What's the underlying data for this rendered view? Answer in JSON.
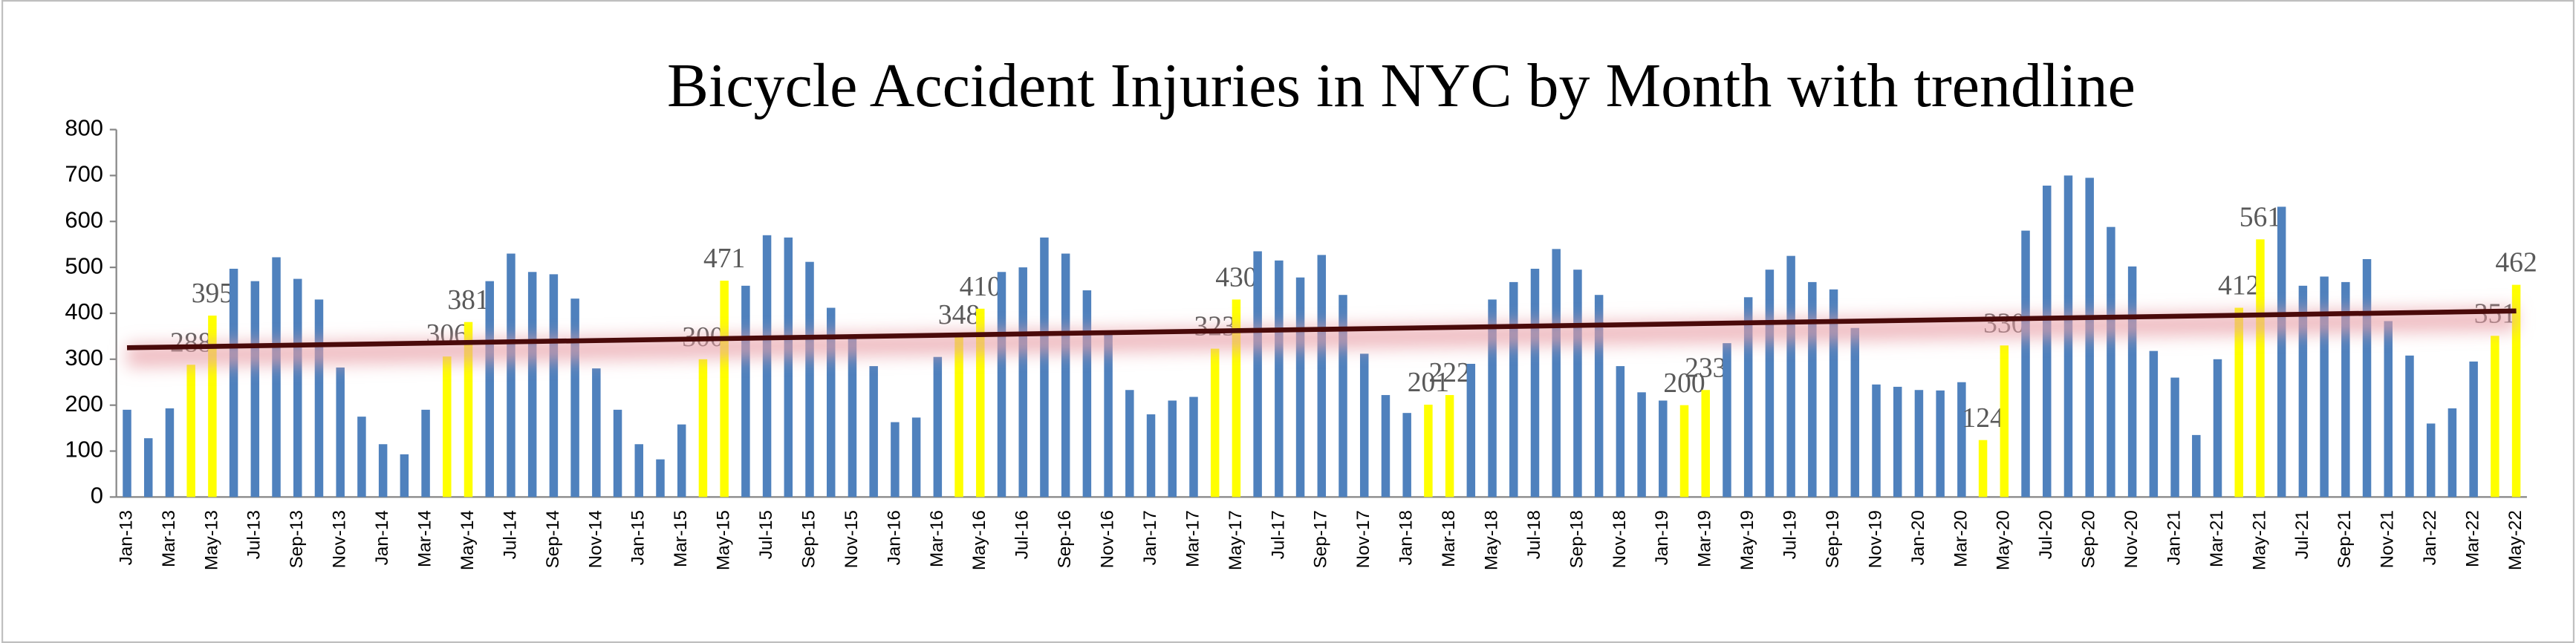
{
  "chart_data": {
    "type": "bar",
    "title": "Bicycle Accident Injuries in NYC by Month with trendline",
    "categories": [
      "Jan-13",
      null,
      "Mar-13",
      null,
      "May-13",
      null,
      "Jul-13",
      null,
      "Sep-13",
      null,
      "Nov-13",
      null,
      "Jan-14",
      null,
      "Mar-14",
      null,
      "May-14",
      null,
      "Jul-14",
      null,
      "Sep-14",
      null,
      "Nov-14",
      null,
      "Jan-15",
      null,
      "Mar-15",
      null,
      "May-15",
      null,
      "Jul-15",
      null,
      "Sep-15",
      null,
      "Nov-15",
      null,
      "Jan-16",
      null,
      "Mar-16",
      null,
      "May-16",
      null,
      "Jul-16",
      null,
      "Sep-16",
      null,
      "Nov-16",
      null,
      "Jan-17",
      null,
      "Mar-17",
      null,
      "May-17",
      null,
      "Jul-17",
      null,
      "Sep-17",
      null,
      "Nov-17",
      null,
      "Jan-18",
      null,
      "Mar-18",
      null,
      "May-18",
      null,
      "Jul-18",
      null,
      "Sep-18",
      null,
      "Nov-18",
      null,
      "Jan-19",
      null,
      "Mar-19",
      null,
      "May-19",
      null,
      "Jul-19",
      null,
      "Sep-19",
      null,
      "Nov-19",
      null,
      "Jan-20",
      null,
      "Mar-20",
      null,
      "May-20",
      null,
      "Jul-20",
      null,
      "Sep-20",
      null,
      "Nov-20",
      null,
      "Jan-21",
      null,
      "Mar-21",
      null,
      "May-21",
      null,
      "Jul-21",
      null,
      "Sep-21",
      null,
      "Nov-21",
      null,
      "Jan-22",
      null,
      "Mar-22",
      null,
      "May-22"
    ],
    "values": [
      190,
      128,
      193,
      288,
      395,
      497,
      470,
      522,
      475,
      430,
      282,
      175,
      115,
      93,
      190,
      306,
      381,
      470,
      530,
      490,
      485,
      432,
      280,
      190,
      115,
      82,
      158,
      300,
      471,
      460,
      570,
      565,
      512,
      412,
      345,
      285,
      163,
      173,
      305,
      348,
      410,
      490,
      500,
      565,
      530,
      450,
      355,
      233,
      180,
      210,
      218,
      323,
      430,
      535,
      515,
      478,
      527,
      440,
      312,
      222,
      183,
      201,
      222,
      290,
      430,
      468,
      497,
      540,
      495,
      440,
      285,
      228,
      210,
      200,
      233,
      335,
      435,
      495,
      525,
      468,
      452,
      368,
      245,
      240,
      233,
      232,
      250,
      124,
      330,
      580,
      678,
      700,
      695,
      588,
      502,
      318,
      260,
      135,
      300,
      412,
      561,
      632,
      460,
      480,
      468,
      518,
      383,
      308,
      160,
      193,
      295,
      351,
      462
    ],
    "colors": [
      "#4f81bd",
      "#4f81bd",
      "#4f81bd",
      "#ffff00",
      "#ffff00",
      "#4f81bd",
      "#4f81bd",
      "#4f81bd",
      "#4f81bd",
      "#4f81bd",
      "#4f81bd",
      "#4f81bd",
      "#4f81bd",
      "#4f81bd",
      "#4f81bd",
      "#ffff00",
      "#ffff00",
      "#4f81bd",
      "#4f81bd",
      "#4f81bd",
      "#4f81bd",
      "#4f81bd",
      "#4f81bd",
      "#4f81bd",
      "#4f81bd",
      "#4f81bd",
      "#4f81bd",
      "#ffff00",
      "#ffff00",
      "#4f81bd",
      "#4f81bd",
      "#4f81bd",
      "#4f81bd",
      "#4f81bd",
      "#4f81bd",
      "#4f81bd",
      "#4f81bd",
      "#4f81bd",
      "#4f81bd",
      "#ffff00",
      "#ffff00",
      "#4f81bd",
      "#4f81bd",
      "#4f81bd",
      "#4f81bd",
      "#4f81bd",
      "#4f81bd",
      "#4f81bd",
      "#4f81bd",
      "#4f81bd",
      "#4f81bd",
      "#ffff00",
      "#ffff00",
      "#4f81bd",
      "#4f81bd",
      "#4f81bd",
      "#4f81bd",
      "#4f81bd",
      "#4f81bd",
      "#4f81bd",
      "#4f81bd",
      "#ffff00",
      "#ffff00",
      "#4f81bd",
      "#4f81bd",
      "#4f81bd",
      "#4f81bd",
      "#4f81bd",
      "#4f81bd",
      "#4f81bd",
      "#4f81bd",
      "#4f81bd",
      "#4f81bd",
      "#ffff00",
      "#ffff00",
      "#4f81bd",
      "#4f81bd",
      "#4f81bd",
      "#4f81bd",
      "#4f81bd",
      "#4f81bd",
      "#4f81bd",
      "#4f81bd",
      "#4f81bd",
      "#4f81bd",
      "#4f81bd",
      "#4f81bd",
      "#ffff00",
      "#ffff00",
      "#4f81bd",
      "#4f81bd",
      "#4f81bd",
      "#4f81bd",
      "#4f81bd",
      "#4f81bd",
      "#4f81bd",
      "#4f81bd",
      "#4f81bd",
      "#4f81bd",
      "#ffff00",
      "#ffff00",
      "#4f81bd",
      "#4f81bd",
      "#4f81bd",
      "#4f81bd",
      "#4f81bd",
      "#4f81bd",
      "#4f81bd",
      "#4f81bd",
      "#4f81bd",
      "#4f81bd",
      "#ffff00",
      "#ffff00"
    ],
    "highlight_color": "#ffff00",
    "trendline": {
      "start": 325,
      "end": 405,
      "color": "#4a0a0a"
    },
    "ylim": [
      0,
      800
    ],
    "yticks": [
      0,
      100,
      200,
      300,
      400,
      500,
      600,
      700,
      800
    ],
    "grid": false
  }
}
